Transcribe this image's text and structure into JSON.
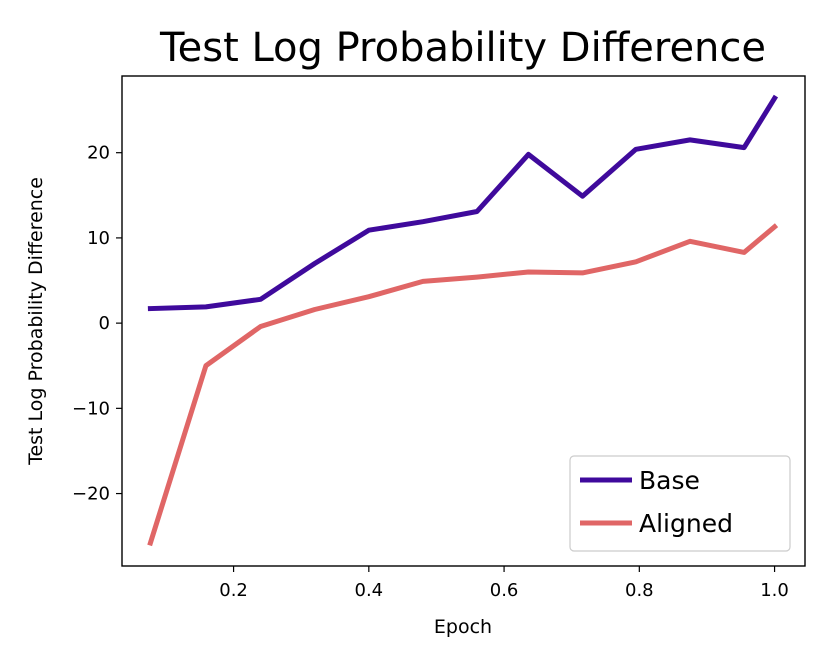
{
  "chart_data": {
    "type": "line",
    "title": "Test Log Probability Difference",
    "xlabel": "Epoch",
    "ylabel": "Test Log Probability Difference",
    "xlim": [
      0.035,
      1.045
    ],
    "ylim": [
      -28.5,
      29
    ],
    "xticks": [
      0.2,
      0.4,
      0.6,
      0.8,
      1.0
    ],
    "xtick_labels": [
      "0.2",
      "0.4",
      "0.6",
      "0.8",
      "1.0"
    ],
    "yticks": [
      -20,
      -10,
      0,
      10,
      20
    ],
    "ytick_labels": [
      "−20",
      "−10",
      "0",
      "10",
      "20"
    ],
    "grid": false,
    "legend_position": "lower-right",
    "x": [
      0.077,
      0.159,
      0.24,
      0.32,
      0.4,
      0.48,
      0.56,
      0.636,
      0.716,
      0.795,
      0.875,
      0.955,
      1.0
    ],
    "series": [
      {
        "name": "Base",
        "color": "#3f0a9c",
        "values": [
          1.7,
          1.9,
          2.8,
          7.0,
          10.9,
          11.9,
          13.1,
          19.8,
          14.9,
          20.4,
          21.5,
          20.6,
          26.4
        ]
      },
      {
        "name": "Aligned",
        "color": "#e06666",
        "values": [
          -25.8,
          -5.0,
          -0.4,
          1.6,
          3.1,
          4.9,
          5.4,
          6.0,
          5.9,
          7.2,
          9.6,
          8.3,
          11.3
        ]
      }
    ]
  }
}
